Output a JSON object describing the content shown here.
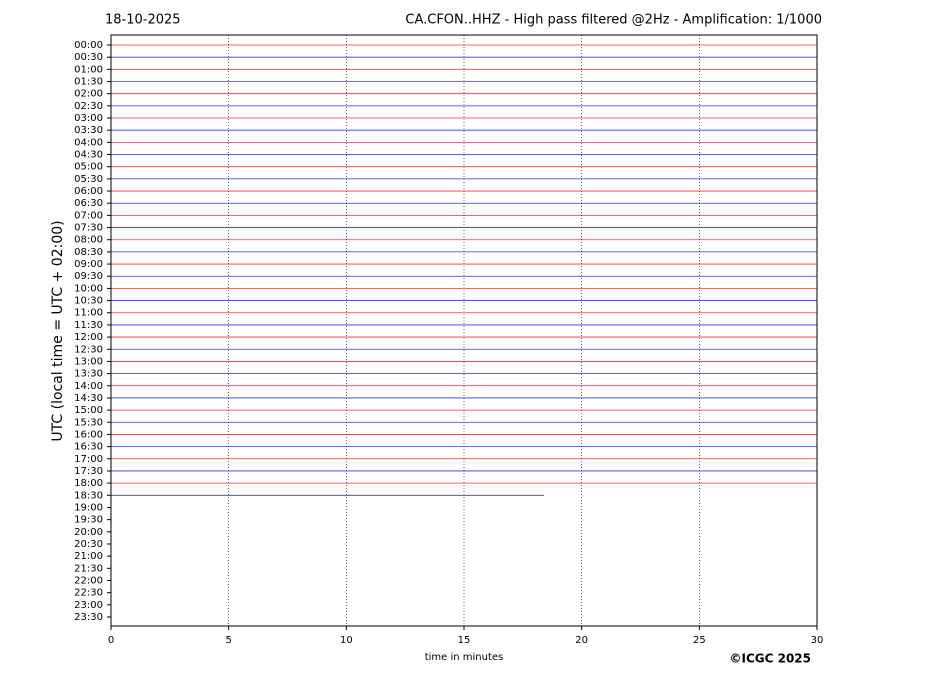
{
  "chart_data": {
    "type": "helicorder",
    "date": "18-10-2025",
    "title": "CA.CFON..HHZ - High pass filtered @2Hz - Amplification: 1/1000",
    "ylabel": "UTC (local time = UTC + 02:00)",
    "xlabel": "time in minutes",
    "copyright": "©ICGC 2025",
    "categories": [
      "00:00",
      "00:30",
      "01:00",
      "01:30",
      "02:00",
      "02:30",
      "03:00",
      "03:30",
      "04:00",
      "04:30",
      "05:00",
      "05:30",
      "06:00",
      "06:30",
      "07:00",
      "07:30",
      "08:00",
      "08:30",
      "09:00",
      "09:30",
      "10:00",
      "10:30",
      "11:00",
      "11:30",
      "12:00",
      "12:30",
      "13:00",
      "13:30",
      "14:00",
      "14:30",
      "15:00",
      "15:30",
      "16:00",
      "16:30",
      "17:00",
      "17:30",
      "18:00",
      "18:30",
      "19:00",
      "19:30",
      "20:00",
      "20:30",
      "21:00",
      "21:30",
      "22:00",
      "22:30",
      "23:00",
      "23:30"
    ],
    "values": [
      30,
      30,
      30,
      30,
      30,
      30,
      30,
      30,
      30,
      30,
      30,
      30,
      30,
      30,
      30,
      30,
      30,
      30,
      30,
      30,
      30,
      30,
      30,
      30,
      30,
      30,
      30,
      30,
      30,
      30,
      30,
      30,
      30,
      30,
      30,
      30,
      30,
      18.4,
      null,
      null,
      null,
      null,
      null,
      null,
      null,
      null,
      null,
      null
    ],
    "colors": [
      "#ff0000",
      "#0000ff"
    ],
    "xlim": [
      0,
      30
    ],
    "xticks": [
      0,
      5,
      10,
      15,
      20,
      25,
      30
    ],
    "grid": true
  }
}
